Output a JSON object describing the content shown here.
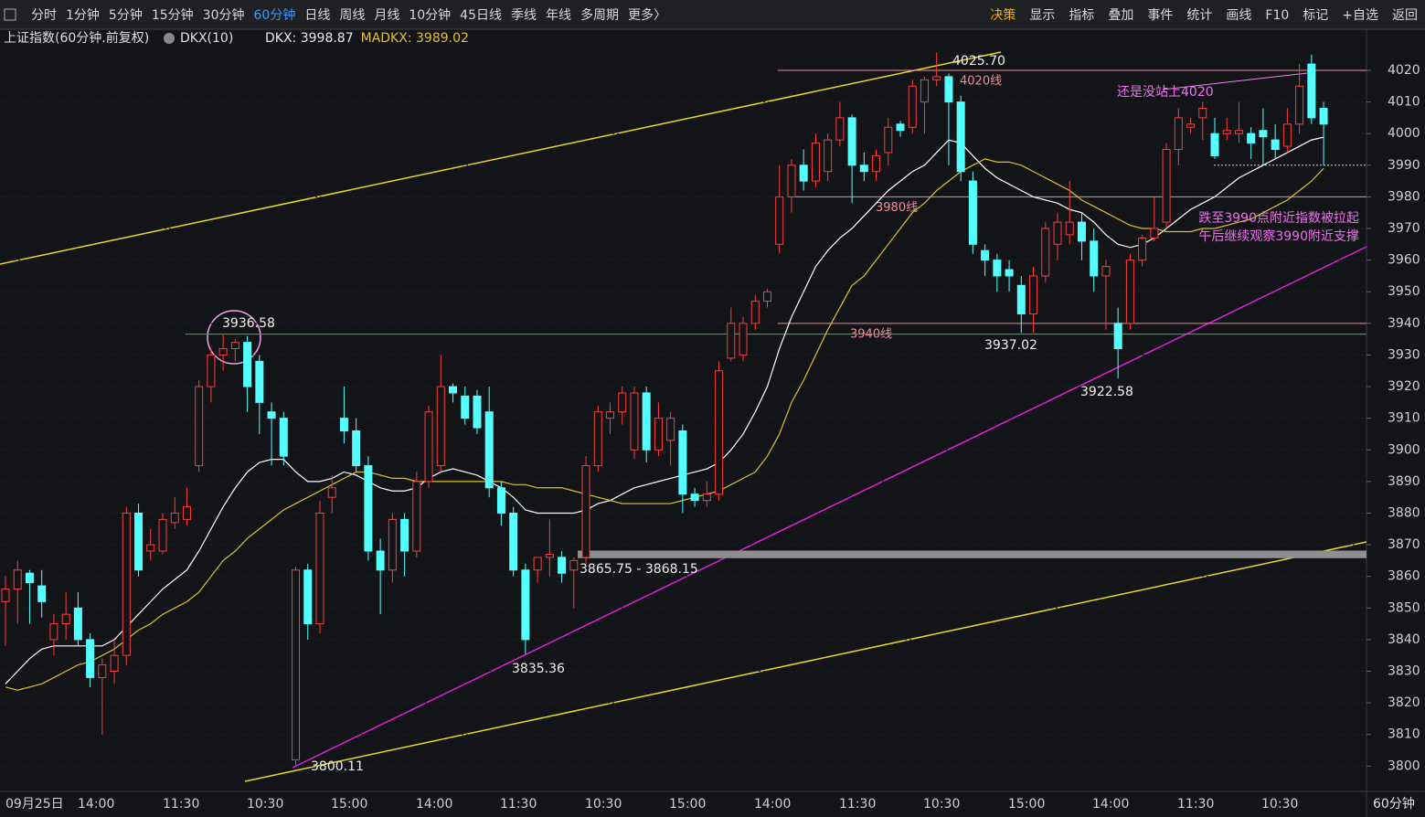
{
  "toolbar": {
    "left": [
      "分时",
      "1分钟",
      "5分钟",
      "15分钟",
      "30分钟",
      "60分钟",
      "日线",
      "周线",
      "月线",
      "10分钟",
      "45日线",
      "季线",
      "年线",
      "多周期",
      "更多〉"
    ],
    "active": "60分钟",
    "right": [
      "决策",
      "显示",
      "指标",
      "叠加",
      "事件",
      "统计",
      "画线",
      "F10",
      "标记",
      "+自选",
      "返回"
    ]
  },
  "chart_data": {
    "type": "candlestick",
    "title": "上证指数(60分钟.前复权)",
    "indicator": "DKX(10)",
    "period": "60分钟",
    "ylim": [
      3792,
      4033
    ],
    "yticks": [
      3800,
      3810,
      3820,
      3830,
      3840,
      3850,
      3860,
      3870,
      3880,
      3890,
      3900,
      3910,
      3920,
      3930,
      3940,
      3950,
      3960,
      3970,
      3980,
      3990,
      4000,
      4010,
      4020
    ],
    "grid": true,
    "xtick_labels": [
      "09月25日",
      "14:00",
      "11:30",
      "10:30",
      "15:00",
      "14:00",
      "11:30",
      "10:30",
      "15:00",
      "14:00",
      "11:30",
      "10:30",
      "15:00",
      "14:00",
      "11:30",
      "10:30"
    ],
    "up_color": "#ff3b3b",
    "down_color": "#54ffff",
    "ohlc": {
      "open": [
        3852,
        3856,
        3861,
        3857,
        3840,
        3845,
        3850,
        3840,
        3828,
        3830,
        3835,
        3880,
        3868,
        3868,
        3877,
        3878,
        3895,
        3920,
        3930,
        3932,
        3934,
        3928,
        3912,
        3910,
        3802,
        3862,
        3845,
        3885,
        3910,
        3906,
        3895,
        3868,
        3862,
        3878,
        3868,
        3890,
        3895,
        3920,
        3917,
        3917,
        3912,
        3888,
        3880,
        3862,
        3862,
        3866,
        3866,
        3862,
        3866,
        3895,
        3910,
        3912,
        3900,
        3918,
        3900,
        3903,
        3906,
        3886,
        3884,
        3886,
        3929,
        3930,
        3940,
        3947,
        3965,
        3980,
        3990,
        3985,
        3988,
        3998,
        4005,
        3990,
        3988,
        3994,
        4003,
        4002,
        4010,
        4017,
        4018,
        4010,
        3985,
        3963,
        3960,
        3957,
        3952,
        3943,
        3955,
        3965,
        3968,
        3972,
        3966,
        3955,
        3940,
        3940,
        3960,
        3967,
        3972,
        3995,
        4002,
        4005,
        4000,
        4000,
        4000,
        4000,
        4001,
        3998,
        3996,
        4003,
        4022,
        4008
      ],
      "high": [
        3860,
        3865,
        3862,
        3862,
        3848,
        3855,
        3855,
        3842,
        3834,
        3840,
        3882,
        3883,
        3875,
        3880,
        3885,
        3888,
        3922,
        3932,
        3936.58,
        3935,
        3936,
        3930,
        3915,
        3912,
        3863,
        3864,
        3884,
        3892,
        3920,
        3910,
        3898,
        3872,
        3880,
        3880,
        3893,
        3914,
        3930,
        3921,
        3920,
        3919,
        3920,
        3890,
        3882,
        3864,
        3866,
        3878,
        3868,
        3866,
        3898,
        3914,
        3915,
        3920,
        3920,
        3920,
        3915,
        3912,
        3908,
        3888,
        3890,
        3928,
        3945,
        3942,
        3949,
        3951,
        3990,
        3992,
        3995,
        4000,
        4000,
        4010,
        4006,
        3994,
        3995,
        4005,
        4004,
        4017,
        4018,
        4025.7,
        4019,
        4012,
        3988,
        3965,
        3962,
        3960,
        3955,
        3958,
        3972,
        3975,
        3985,
        3975,
        3970,
        3960,
        3945,
        3962,
        3968,
        3980,
        3997,
        4008,
        4005,
        4010,
        4005,
        4005,
        4010,
        4002,
        4008,
        4003,
        4008,
        4022,
        4025,
        4010
      ],
      "low": [
        3838,
        3845,
        3845,
        3847,
        3835,
        3840,
        3838,
        3825,
        3810,
        3826,
        3832,
        3860,
        3865,
        3867,
        3875,
        3876,
        3893,
        3915,
        3925,
        3928,
        3912,
        3905,
        3895,
        3895,
        3800.11,
        3840,
        3842,
        3880,
        3902,
        3893,
        3865,
        3848,
        3858,
        3860,
        3866,
        3888,
        3893,
        3915,
        3908,
        3905,
        3885,
        3876,
        3860,
        3835.36,
        3858,
        3860,
        3858,
        3850,
        3864,
        3893,
        3905,
        3908,
        3897,
        3896,
        3898,
        3895,
        3880,
        3882,
        3882,
        3884,
        3928,
        3928,
        3938,
        3945,
        3962,
        3975,
        3982,
        3983,
        3985,
        3996,
        3978,
        3985,
        3985,
        3990,
        3999,
        4000,
        4000,
        4015,
        3990,
        3985,
        3962,
        3955,
        3950,
        3950,
        3937.02,
        3937,
        3953,
        3960,
        3965,
        3960,
        3950,
        3938,
        3922.58,
        3938,
        3958,
        3966,
        3970,
        3990,
        4000,
        3998,
        3992,
        3998,
        3997,
        3992,
        3990,
        3992,
        3994,
        4000,
        4003,
        3990
      ],
      "close": [
        3856,
        3862,
        3858,
        3852,
        3845,
        3848,
        3840,
        3828,
        3832,
        3835,
        3880,
        3862,
        3870,
        3878,
        3880,
        3882,
        3920,
        3930,
        3932,
        3934,
        3920,
        3915,
        3910,
        3898,
        3862,
        3845,
        3880,
        3888,
        3906,
        3895,
        3868,
        3862,
        3878,
        3868,
        3890,
        3912,
        3920,
        3918,
        3910,
        3907,
        3888,
        3880,
        3862,
        3840,
        3866,
        3867,
        3861,
        3865,
        3895,
        3912,
        3912,
        3918,
        3918,
        3900,
        3910,
        3910,
        3886,
        3884,
        3886,
        3925,
        3940,
        3940,
        3947,
        3950,
        3980,
        3990,
        3985,
        3997,
        3998,
        4005,
        3990,
        3988,
        3993,
        4002,
        4001,
        4015,
        4017,
        4018,
        4010,
        3988,
        3965,
        3960,
        3955,
        3955,
        3943,
        3955,
        3970,
        3972,
        3972,
        3966,
        3955,
        3958,
        3932,
        3960,
        3967,
        3970,
        3995,
        4005,
        4003,
        4008,
        3993,
        4001,
        4001,
        3997,
        3999,
        3995,
        4003,
        4015,
        4005,
        4003
      ]
    },
    "series": [
      {
        "label": "DKX: 3998.87",
        "color": "#ffffff",
        "values": [
          3826,
          3830,
          3834,
          3837,
          3838,
          3838,
          3838,
          3838,
          3838,
          3840,
          3844,
          3848,
          3852,
          3856,
          3859,
          3862,
          3868,
          3875,
          3882,
          3888,
          3893,
          3896,
          3897,
          3897,
          3893,
          3890,
          3890,
          3891,
          3893,
          3892,
          3890,
          3888,
          3887,
          3887,
          3888,
          3891,
          3893,
          3894,
          3893,
          3892,
          3890,
          3888,
          3885,
          3881,
          3880,
          3880,
          3880,
          3880,
          3881,
          3883,
          3884,
          3886,
          3888,
          3889,
          3890,
          3891,
          3892,
          3893,
          3894,
          3896,
          3900,
          3905,
          3912,
          3920,
          3932,
          3942,
          3950,
          3958,
          3963,
          3967,
          3970,
          3974,
          3978,
          3982,
          3985,
          3988,
          3990,
          3994,
          3998,
          3997,
          3993,
          3989,
          3986,
          3984,
          3982,
          3980,
          3979,
          3978,
          3976,
          3975,
          3972,
          3968,
          3965,
          3964,
          3965,
          3967,
          3970,
          3973,
          3976,
          3978,
          3980,
          3983,
          3986,
          3988,
          3990,
          3992,
          3994,
          3996,
          3998,
          3998.87
        ]
      },
      {
        "label": "MADKX: 3989.02",
        "color": "#d9c22e",
        "values": [
          3825,
          3824,
          3825,
          3826,
          3828,
          3830,
          3832,
          3833,
          3835,
          3837,
          3840,
          3843,
          3845,
          3848,
          3850,
          3852,
          3855,
          3860,
          3865,
          3868,
          3872,
          3875,
          3878,
          3881,
          3883,
          3885,
          3887,
          3889,
          3891,
          3893,
          3893,
          3892,
          3891,
          3891,
          3890,
          3890,
          3890,
          3890,
          3890,
          3890,
          3890,
          3890,
          3889,
          3889,
          3888,
          3888,
          3888,
          3887,
          3886,
          3885,
          3884,
          3883,
          3883,
          3883,
          3883,
          3883,
          3884,
          3885,
          3886,
          3887,
          3889,
          3891,
          3893,
          3898,
          3905,
          3915,
          3922,
          3930,
          3938,
          3945,
          3952,
          3955,
          3960,
          3965,
          3970,
          3975,
          3978,
          3982,
          3985,
          3988,
          3990,
          3992,
          3991,
          3991,
          3990,
          3988,
          3986,
          3984,
          3982,
          3979,
          3977,
          3975,
          3973,
          3971,
          3970,
          3970,
          3969,
          3969,
          3969,
          3970,
          3970,
          3971,
          3972,
          3973,
          3975,
          3977,
          3979,
          3982,
          3985,
          3989.02
        ]
      }
    ],
    "levels": [
      {
        "value": 4020,
        "label": "4020线",
        "color": "#f08a9a"
      },
      {
        "value": 3980,
        "label": "3980线",
        "color": "#f08a9a"
      },
      {
        "value": 3940,
        "label": "3940线",
        "color": "#f08a9a"
      },
      {
        "value": 3936.58,
        "color": "#22cc22"
      },
      {
        "value": 3990,
        "color": "#dddddd"
      }
    ],
    "band": {
      "low": 3865.75,
      "high": 3868.15,
      "label": "3865.75 - 3868.15",
      "color": "#8f8f8f"
    },
    "point_labels": [
      "3936.58",
      "3800.11",
      "3835.36",
      "4025.70",
      "3937.02",
      "3922.58"
    ],
    "notes": [
      "还是没站上4020",
      "跌至3990点附近指数被拉起",
      "午后继续观察3990附近支撑"
    ]
  }
}
